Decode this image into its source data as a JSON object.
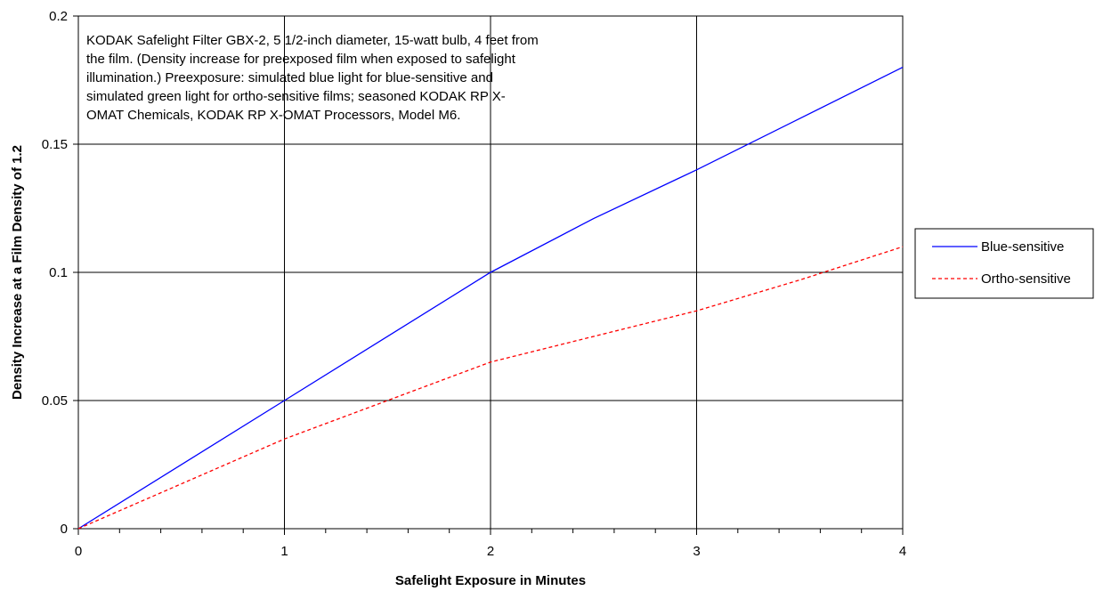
{
  "chart_data": {
    "type": "line",
    "title": "",
    "xlabel": "Safelight Exposure in Minutes",
    "ylabel": "Density Increase at a Film Density of 1.2",
    "xlim": [
      0,
      4
    ],
    "ylim": [
      0,
      0.2
    ],
    "x_ticks": [
      "0",
      "1",
      "2",
      "3",
      "4"
    ],
    "y_ticks": [
      "0",
      "0.05",
      "0.1",
      "0.15",
      "0.2"
    ],
    "grid": true,
    "legend_position": "right",
    "annotation_lines": [
      "KODAK Safelight Filter GBX-2, 5 1/2-inch diameter, 15-watt bulb, 4 feet from",
      "the film. (Density increase for preexposed film when exposed to safelight",
      "illumination.) Preexposure: simulated blue light for blue-sensitive and",
      "simulated green light for ortho-sensitive films; seasoned KODAK RP X-",
      "OMAT Chemicals, KODAK RP X-OMAT Processors, Model M6."
    ],
    "series": [
      {
        "name": "Blue-sensitive",
        "color": "#0000ff",
        "dash": "solid",
        "x": [
          0,
          1,
          2,
          2.5,
          3,
          4
        ],
        "y": [
          0,
          0.05,
          0.1,
          0.121,
          0.14,
          0.18
        ]
      },
      {
        "name": "Ortho-sensitive",
        "color": "#ff0000",
        "dash": "dashed",
        "x": [
          0,
          1,
          2,
          3,
          3.5,
          4
        ],
        "y": [
          0,
          0.035,
          0.065,
          0.085,
          0.097,
          0.11
        ]
      }
    ]
  }
}
